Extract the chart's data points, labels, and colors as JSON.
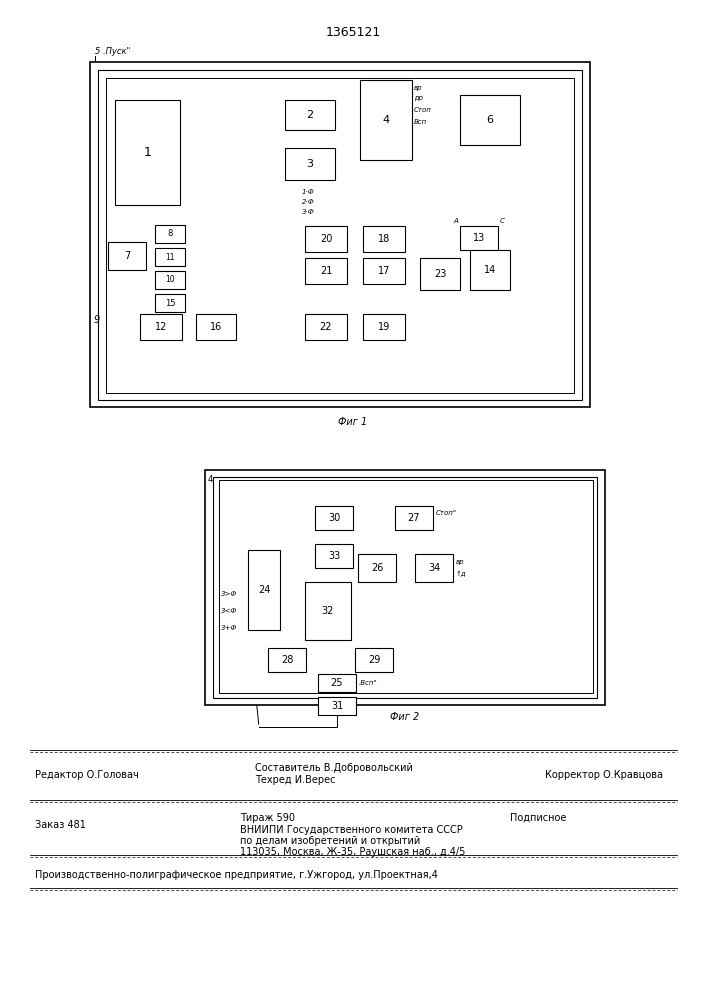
{
  "title": "1365121",
  "fig1_label": "Фиг 1",
  "fig2_label": "Фиг 2",
  "background": "#ffffff"
}
